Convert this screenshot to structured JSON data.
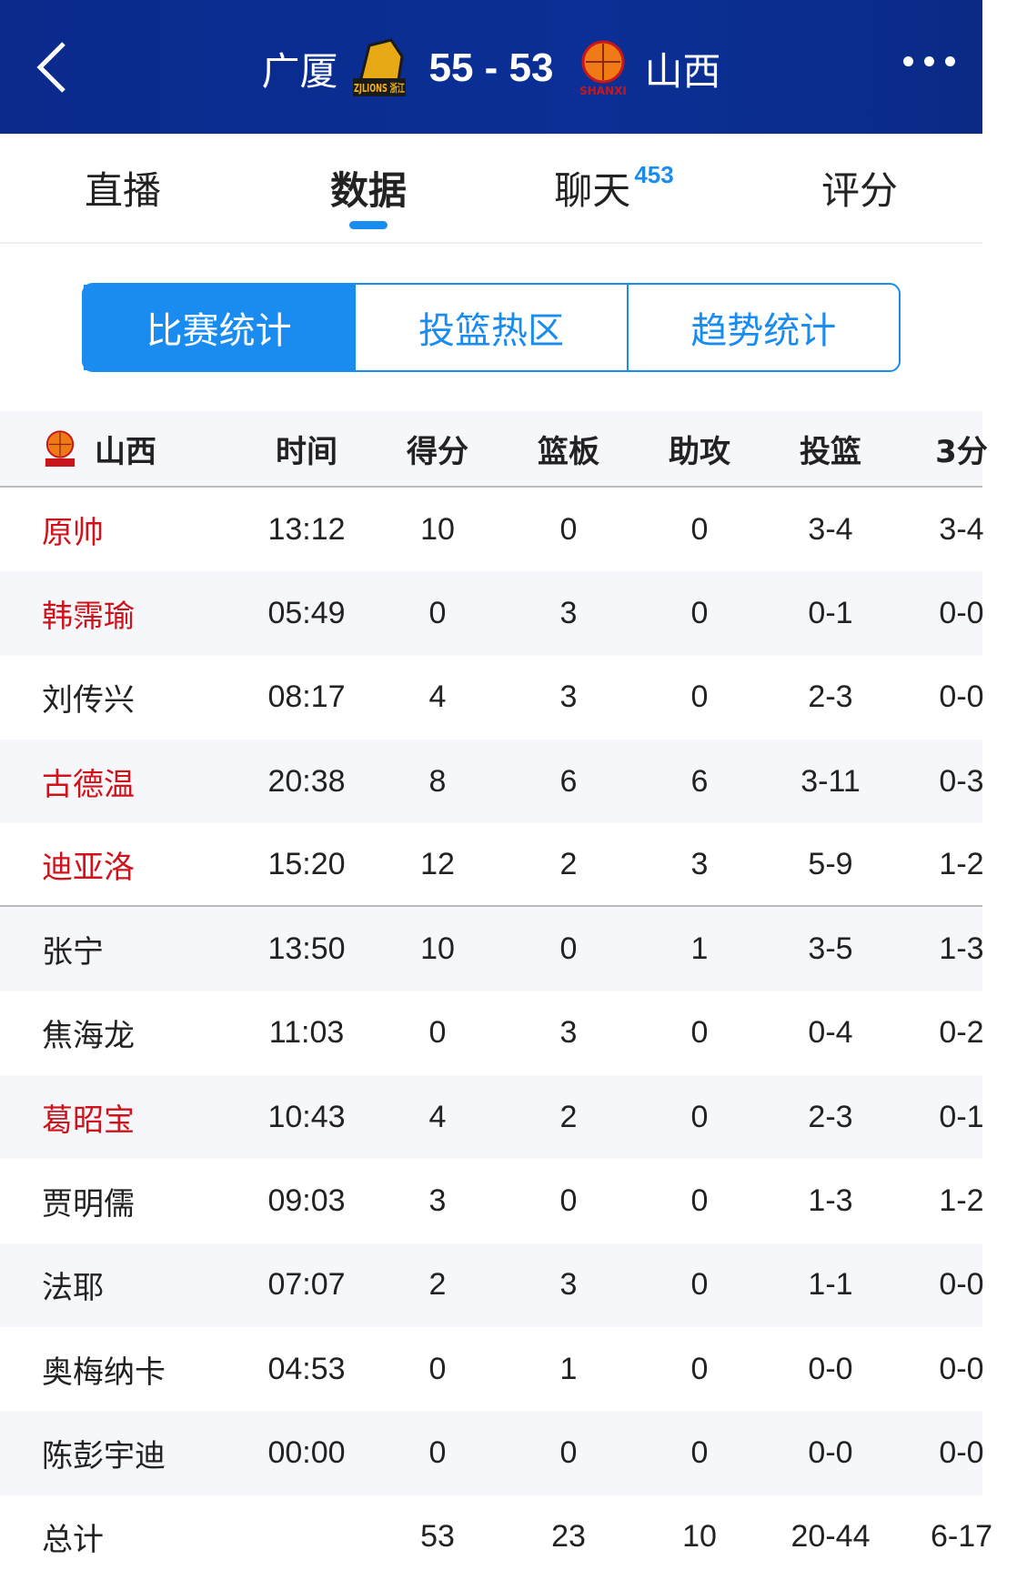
{
  "header": {
    "home_team": "广厦",
    "away_team": "山西",
    "score": "55 - 53",
    "home_logo_text": "ZJLIONS 浙江",
    "away_logo_text": "SHANXI"
  },
  "tabs": [
    {
      "label": "直播"
    },
    {
      "label": "数据",
      "active": true
    },
    {
      "label": "聊天",
      "badge": "453"
    },
    {
      "label": "评分"
    }
  ],
  "segments": [
    "比赛统计",
    "投篮热区",
    "趋势统计"
  ],
  "table": {
    "team": "山西",
    "columns": [
      "时间",
      "得分",
      "篮板",
      "助攻",
      "投篮",
      "3分"
    ],
    "rows": [
      {
        "name": "原帅",
        "starter": true,
        "highlight": true,
        "values": [
          "13:12",
          "10",
          "0",
          "0",
          "3-4",
          "3-4"
        ]
      },
      {
        "name": "韩霈瑜",
        "starter": true,
        "highlight": true,
        "values": [
          "05:49",
          "0",
          "3",
          "0",
          "0-1",
          "0-0"
        ]
      },
      {
        "name": "刘传兴",
        "starter": true,
        "highlight": false,
        "values": [
          "08:17",
          "4",
          "3",
          "0",
          "2-3",
          "0-0"
        ]
      },
      {
        "name": "古德温",
        "starter": true,
        "highlight": true,
        "values": [
          "20:38",
          "8",
          "6",
          "6",
          "3-11",
          "0-3"
        ]
      },
      {
        "name": "迪亚洛",
        "starter": true,
        "highlight": true,
        "values": [
          "15:20",
          "12",
          "2",
          "3",
          "5-9",
          "1-2"
        ]
      },
      {
        "name": "张宁",
        "highlight": false,
        "values": [
          "13:50",
          "10",
          "0",
          "1",
          "3-5",
          "1-3"
        ]
      },
      {
        "name": "焦海龙",
        "highlight": false,
        "values": [
          "11:03",
          "0",
          "3",
          "0",
          "0-4",
          "0-2"
        ]
      },
      {
        "name": "葛昭宝",
        "highlight": true,
        "values": [
          "10:43",
          "4",
          "2",
          "0",
          "2-3",
          "0-1"
        ]
      },
      {
        "name": "贾明儒",
        "highlight": false,
        "values": [
          "09:03",
          "3",
          "0",
          "0",
          "1-3",
          "1-2"
        ]
      },
      {
        "name": "法耶",
        "highlight": false,
        "values": [
          "07:07",
          "2",
          "3",
          "0",
          "1-1",
          "0-0"
        ]
      },
      {
        "name": "奥梅纳卡",
        "highlight": false,
        "values": [
          "04:53",
          "0",
          "1",
          "0",
          "0-0",
          "0-0"
        ]
      },
      {
        "name": "陈彭宇迪",
        "highlight": false,
        "values": [
          "00:00",
          "0",
          "0",
          "0",
          "0-0",
          "0-0"
        ]
      },
      {
        "name": "总计",
        "highlight": false,
        "values": [
          "",
          "53",
          "23",
          "10",
          "20-44",
          "6-17"
        ]
      }
    ]
  },
  "colors": {
    "header_bg": "#0b2f96",
    "accent": "#1a8cf0",
    "highlight_name": "#d0121b"
  }
}
